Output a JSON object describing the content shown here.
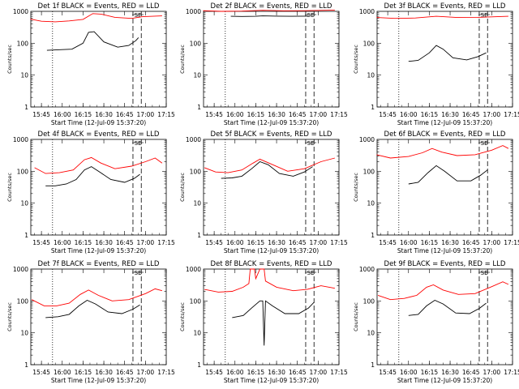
{
  "figure": {
    "ylabel": "Counts/sec",
    "xlabel": "Start Time (12-Jul-09 15:37:20)",
    "tick_labels_y": [
      "1",
      "10",
      "100",
      "1000"
    ],
    "tick_labels_x": [
      "15:45",
      "16:00",
      "16:15",
      "16:30",
      "16:45",
      "17:00",
      "17:15"
    ],
    "marker_text": "SE",
    "colors": {
      "events": "#000000",
      "lld": "#ff0000",
      "background": "#ffffff"
    }
  },
  "chart_data": [
    {
      "type": "line",
      "title": "Det 1f BLACK = Events, RED = LLD",
      "ylim": [
        1,
        1000
      ],
      "xlim": [
        "15:37:20",
        "17:15"
      ],
      "log_y": true,
      "series": [
        {
          "values": [
            [
              "15:49",
              60
            ],
            [
              "16:00",
              63
            ],
            [
              "16:07",
              65
            ],
            [
              "16:15",
              100
            ],
            [
              "16:19",
              220
            ],
            [
              "16:23",
              230
            ],
            [
              "16:30",
              110
            ],
            [
              "16:40",
              75
            ],
            [
              "16:48",
              85
            ],
            [
              "16:53",
              120
            ],
            [
              "16:55",
              150
            ]
          ]
        },
        {
          "values": [
            [
              "15:37",
              570
            ],
            [
              "15:45",
              490
            ],
            [
              "15:55",
              470
            ],
            [
              "16:05",
              500
            ],
            [
              "16:15",
              560
            ],
            [
              "16:22",
              850
            ],
            [
              "16:28",
              820
            ],
            [
              "16:38",
              650
            ],
            [
              "16:50",
              600
            ],
            [
              "16:58",
              680
            ],
            [
              "17:12",
              720
            ]
          ]
        }
      ]
    },
    {
      "type": "line",
      "title": "Det 2f BLACK = Events, RED = LLD",
      "ylim": [
        1,
        1000
      ],
      "xlim": [
        "15:37:20",
        "17:15"
      ],
      "log_y": true,
      "series": [
        {
          "values": [
            [
              "15:57",
              700
            ],
            [
              "16:05",
              690
            ],
            [
              "16:15",
              700
            ],
            [
              "16:20",
              720
            ],
            [
              "16:30",
              710
            ],
            [
              "16:40",
              700
            ],
            [
              "16:53",
              710
            ]
          ]
        },
        {
          "values": [
            [
              "15:37",
              1050
            ],
            [
              "15:50",
              1000
            ],
            [
              "16:05",
              1020
            ],
            [
              "16:20",
              1080
            ],
            [
              "16:35",
              1040
            ],
            [
              "16:50",
              1050
            ],
            [
              "17:12",
              1100
            ]
          ]
        }
      ]
    },
    {
      "type": "line",
      "title": "Det 3f BLACK = Events, RED = LLD",
      "ylim": [
        1,
        1000
      ],
      "xlim": [
        "15:37:20",
        "17:15"
      ],
      "log_y": true,
      "series": [
        {
          "values": [
            [
              "16:00",
              27
            ],
            [
              "16:07",
              29
            ],
            [
              "16:15",
              50
            ],
            [
              "16:20",
              85
            ],
            [
              "16:25",
              65
            ],
            [
              "16:32",
              35
            ],
            [
              "16:42",
              30
            ],
            [
              "16:50",
              38
            ],
            [
              "16:56",
              50
            ]
          ]
        },
        {
          "values": [
            [
              "15:37",
              640
            ],
            [
              "15:50",
              600
            ],
            [
              "16:05",
              620
            ],
            [
              "16:20",
              700
            ],
            [
              "16:35",
              640
            ],
            [
              "16:50",
              650
            ],
            [
              "17:12",
              700
            ]
          ]
        }
      ]
    },
    {
      "type": "line",
      "title": "Det 4f BLACK = Events, RED = LLD",
      "ylim": [
        1,
        1000
      ],
      "xlim": [
        "15:37:20",
        "17:15"
      ],
      "log_y": true,
      "series": [
        {
          "values": [
            [
              "15:48",
              35
            ],
            [
              "15:55",
              35
            ],
            [
              "16:03",
              40
            ],
            [
              "16:10",
              55
            ],
            [
              "16:16",
              110
            ],
            [
              "16:21",
              140
            ],
            [
              "16:27",
              95
            ],
            [
              "16:35",
              55
            ],
            [
              "16:45",
              45
            ],
            [
              "16:52",
              60
            ],
            [
              "16:56",
              80
            ]
          ]
        },
        {
          "values": [
            [
              "15:40",
              130
            ],
            [
              "15:48",
              85
            ],
            [
              "15:58",
              90
            ],
            [
              "16:08",
              110
            ],
            [
              "16:16",
              230
            ],
            [
              "16:21",
              270
            ],
            [
              "16:28",
              180
            ],
            [
              "16:38",
              120
            ],
            [
              "16:50",
              145
            ],
            [
              "17:00",
              200
            ],
            [
              "17:07",
              260
            ],
            [
              "17:12",
              180
            ]
          ]
        }
      ]
    },
    {
      "type": "line",
      "title": "Det 5f BLACK = Events, RED = LLD",
      "ylim": [
        1,
        1000
      ],
      "xlim": [
        "15:37:20",
        "17:15"
      ],
      "log_y": true,
      "series": [
        {
          "values": [
            [
              "15:50",
              60
            ],
            [
              "15:58",
              62
            ],
            [
              "16:05",
              70
            ],
            [
              "16:12",
              120
            ],
            [
              "16:18",
              200
            ],
            [
              "16:24",
              160
            ],
            [
              "16:32",
              85
            ],
            [
              "16:42",
              70
            ],
            [
              "16:50",
              95
            ],
            [
              "16:56",
              140
            ]
          ]
        },
        {
          "values": [
            [
              "15:38",
              130
            ],
            [
              "15:46",
              95
            ],
            [
              "15:55",
              90
            ],
            [
              "16:05",
              110
            ],
            [
              "16:13",
              180
            ],
            [
              "16:18",
              240
            ],
            [
              "16:26",
              170
            ],
            [
              "16:38",
              100
            ],
            [
              "16:50",
              120
            ],
            [
              "17:02",
              200
            ],
            [
              "17:12",
              260
            ]
          ]
        }
      ]
    },
    {
      "type": "line",
      "title": "Det 6f BLACK = Events, RED = LLD",
      "ylim": [
        1,
        1000
      ],
      "xlim": [
        "15:37:20",
        "17:15"
      ],
      "log_y": true,
      "series": [
        {
          "values": [
            [
              "16:00",
              40
            ],
            [
              "16:07",
              45
            ],
            [
              "16:14",
              90
            ],
            [
              "16:20",
              150
            ],
            [
              "16:26",
              100
            ],
            [
              "16:35",
              50
            ],
            [
              "16:45",
              50
            ],
            [
              "16:52",
              75
            ],
            [
              "16:57",
              110
            ]
          ]
        },
        {
          "values": [
            [
              "15:37",
              330
            ],
            [
              "15:47",
              260
            ],
            [
              "16:00",
              290
            ],
            [
              "16:10",
              380
            ],
            [
              "16:17",
              520
            ],
            [
              "16:24",
              400
            ],
            [
              "16:35",
              310
            ],
            [
              "16:48",
              330
            ],
            [
              "17:00",
              460
            ],
            [
              "17:08",
              640
            ],
            [
              "17:12",
              520
            ]
          ]
        }
      ]
    },
    {
      "type": "line",
      "title": "Det 7f BLACK = Events, RED = LLD",
      "ylim": [
        1,
        1000
      ],
      "xlim": [
        "15:37:20",
        "17:15"
      ],
      "log_y": true,
      "series": [
        {
          "values": [
            [
              "15:48",
              30
            ],
            [
              "15:57",
              32
            ],
            [
              "16:05",
              38
            ],
            [
              "16:12",
              70
            ],
            [
              "16:18",
              105
            ],
            [
              "16:24",
              80
            ],
            [
              "16:33",
              45
            ],
            [
              "16:43",
              40
            ],
            [
              "16:51",
              55
            ],
            [
              "16:56",
              75
            ]
          ]
        },
        {
          "values": [
            [
              "15:38",
              110
            ],
            [
              "15:47",
              70
            ],
            [
              "15:56",
              70
            ],
            [
              "16:05",
              85
            ],
            [
              "16:13",
              160
            ],
            [
              "16:19",
              220
            ],
            [
              "16:26",
              150
            ],
            [
              "16:36",
              100
            ],
            [
              "16:48",
              110
            ],
            [
              "17:00",
              170
            ],
            [
              "17:07",
              240
            ],
            [
              "17:12",
              210
            ]
          ]
        }
      ]
    },
    {
      "type": "line",
      "title": "Det 8f BLACK = Events, RED = LLD",
      "ylim": [
        1,
        1000
      ],
      "xlim": [
        "15:37:20",
        "17:15"
      ],
      "log_y": true,
      "series": [
        {
          "values": [
            [
              "15:58",
              30
            ],
            [
              "16:06",
              35
            ],
            [
              "16:12",
              60
            ],
            [
              "16:18",
              100
            ],
            [
              "16:20",
              100
            ],
            [
              "16:21",
              4
            ],
            [
              "16:22",
              100
            ],
            [
              "16:27",
              70
            ],
            [
              "16:36",
              40
            ],
            [
              "16:46",
              40
            ],
            [
              "16:53",
              60
            ],
            [
              "16:57",
              90
            ]
          ]
        },
        {
          "values": [
            [
              "15:38",
              230
            ],
            [
              "15:48",
              190
            ],
            [
              "15:58",
              200
            ],
            [
              "16:06",
              270
            ],
            [
              "16:10",
              350
            ],
            [
              "16:11",
              1000
            ],
            [
              "16:14",
              1000
            ],
            [
              "16:15",
              500
            ],
            [
              "16:18",
              1000
            ],
            [
              "16:21",
              1000
            ],
            [
              "16:22",
              420
            ],
            [
              "16:30",
              270
            ],
            [
              "16:42",
              210
            ],
            [
              "16:52",
              230
            ],
            [
              "17:02",
              300
            ],
            [
              "17:12",
              250
            ]
          ]
        }
      ]
    },
    {
      "type": "line",
      "title": "Det 9f BLACK = Events, RED = LLD",
      "ylim": [
        1,
        1000
      ],
      "xlim": [
        "15:37:20",
        "17:15"
      ],
      "log_y": true,
      "series": [
        {
          "values": [
            [
              "16:00",
              35
            ],
            [
              "16:07",
              38
            ],
            [
              "16:13",
              70
            ],
            [
              "16:19",
              105
            ],
            [
              "16:25",
              80
            ],
            [
              "16:34",
              42
            ],
            [
              "16:44",
              40
            ],
            [
              "16:51",
              58
            ],
            [
              "16:56",
              85
            ]
          ]
        },
        {
          "values": [
            [
              "15:38",
              150
            ],
            [
              "15:47",
              110
            ],
            [
              "15:57",
              120
            ],
            [
              "16:06",
              150
            ],
            [
              "16:13",
              270
            ],
            [
              "16:18",
              320
            ],
            [
              "16:25",
              220
            ],
            [
              "16:36",
              160
            ],
            [
              "16:48",
              170
            ],
            [
              "17:00",
              280
            ],
            [
              "17:08",
              400
            ],
            [
              "17:12",
              330
            ]
          ]
        }
      ]
    }
  ]
}
